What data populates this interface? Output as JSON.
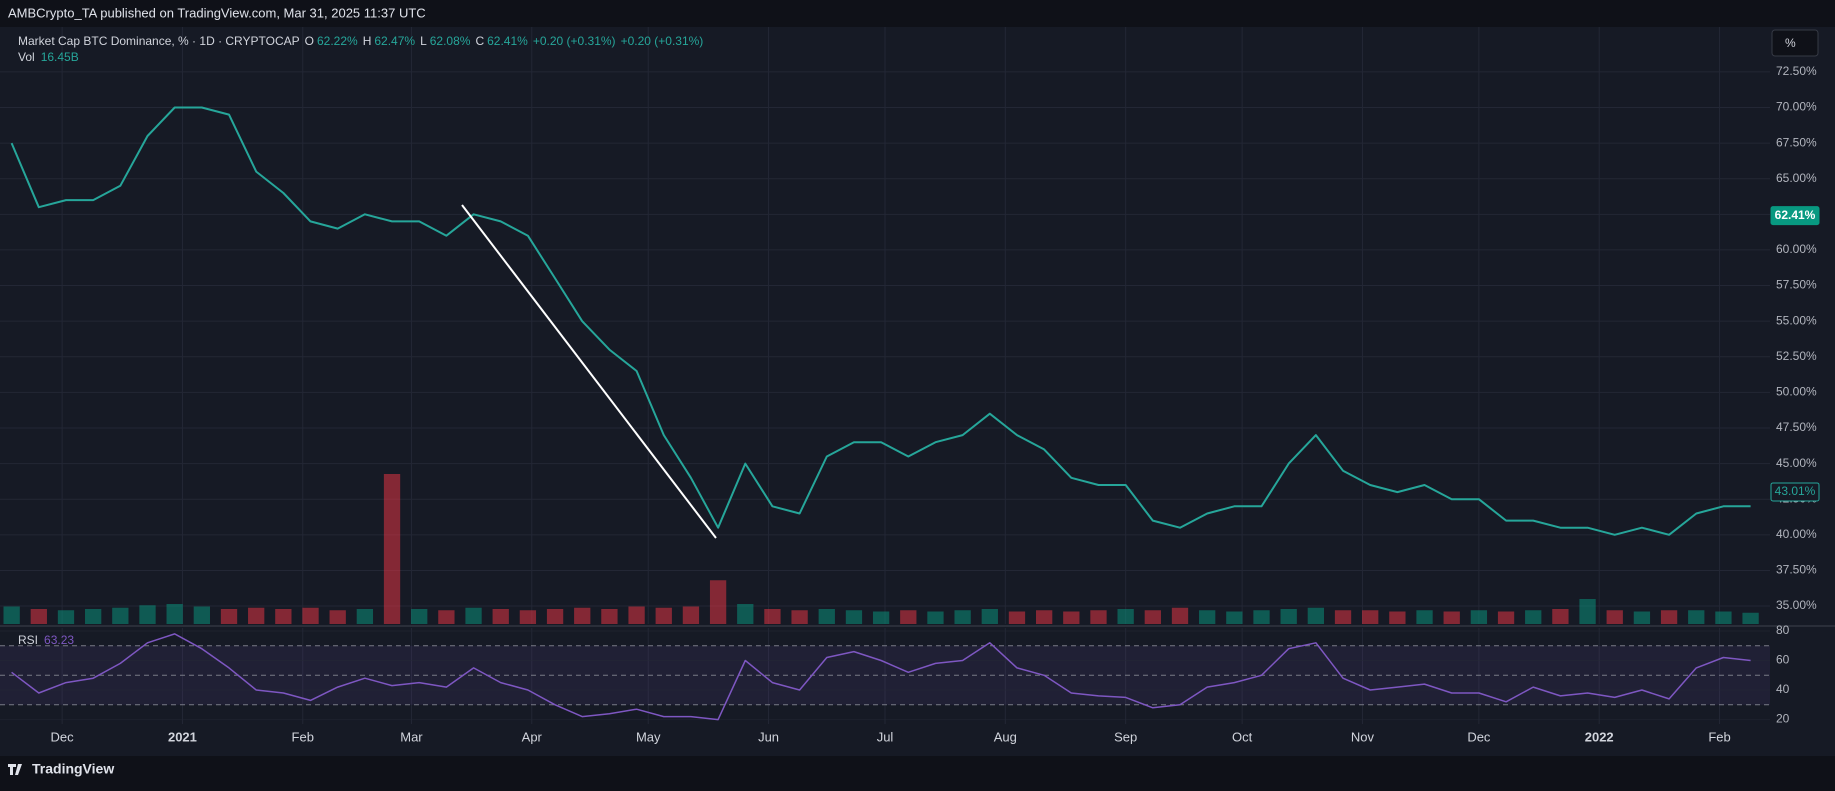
{
  "header": {
    "text": "AMBCrypto_TA published on TradingView.com, Mar 31, 2025 11:37 UTC"
  },
  "footer": {
    "brand": "TradingView"
  },
  "scale_button": "%",
  "chart_data": [
    {
      "type": "line",
      "title": "Market Cap BTC Dominance, % · 1D · CRYPTOCAP",
      "ohlc": [
        {
          "name": "O",
          "value": 62.22,
          "label": "62.22%"
        },
        {
          "name": "H",
          "value": 62.47,
          "label": "62.47%"
        },
        {
          "name": "L",
          "value": 62.08,
          "label": "62.08%"
        },
        {
          "name": "C",
          "value": 62.41,
          "label": "62.41%"
        }
      ],
      "change": "+0.20 (+0.31%)",
      "change_2": "+0.20 (+0.31%)",
      "x": [
        -13,
        -6,
        1,
        8,
        15,
        22,
        29,
        36,
        43,
        50,
        57,
        64,
        71,
        78,
        85,
        92,
        99,
        106,
        113,
        120,
        127,
        134,
        141,
        148,
        155,
        162,
        169,
        176,
        183,
        190,
        197,
        204,
        211,
        218,
        225,
        232,
        239,
        246,
        253,
        260,
        267,
        274,
        281,
        288,
        295,
        302,
        309,
        316,
        323,
        330,
        337,
        344,
        351,
        358,
        365,
        372,
        379,
        386,
        393,
        400,
        407,
        414,
        421,
        428,
        435
      ],
      "series": [
        {
          "name": "BTC Dominance",
          "color": "#26a69a",
          "values": [
            67.5,
            63,
            63.5,
            63.5,
            64.5,
            68,
            70,
            70,
            69.5,
            65.5,
            64,
            62,
            61.5,
            62.5,
            62,
            62,
            61,
            62.5,
            62,
            61,
            58,
            55,
            53,
            51.5,
            47,
            44,
            40.5,
            45,
            42,
            41.5,
            45.5,
            46.5,
            46.5,
            45.5,
            46.5,
            47,
            48.5,
            47,
            46,
            44,
            43.5,
            43.5,
            41,
            40.5,
            41.5,
            42,
            42,
            45,
            47,
            44.5,
            43.5,
            43,
            43.5,
            42.5,
            42.5,
            41,
            41,
            40.5,
            40.5,
            40,
            40.5,
            40,
            41.5,
            42,
            42
          ]
        }
      ],
      "xlim": [
        -16,
        440
      ],
      "xticks": [
        {
          "value": 0,
          "label": "Dec"
        },
        {
          "value": 31,
          "label": "2021"
        },
        {
          "value": 62,
          "label": "Feb"
        },
        {
          "value": 90,
          "label": "Mar"
        },
        {
          "value": 121,
          "label": "Apr"
        },
        {
          "value": 151,
          "label": "May"
        },
        {
          "value": 182,
          "label": "Jun"
        },
        {
          "value": 212,
          "label": "Jul"
        },
        {
          "value": 243,
          "label": "Aug"
        },
        {
          "value": 274,
          "label": "Sep"
        },
        {
          "value": 304,
          "label": "Oct"
        },
        {
          "value": 335,
          "label": "Nov"
        },
        {
          "value": 365,
          "label": "Dec"
        },
        {
          "value": 396,
          "label": "2022"
        },
        {
          "value": 427,
          "label": "Feb"
        }
      ],
      "ylim": [
        33.74,
        75.65
      ],
      "yticks": [
        {
          "value": 35,
          "label": "35.00%"
        },
        {
          "value": 37.5,
          "label": "37.50%"
        },
        {
          "value": 40,
          "label": "40.00%"
        },
        {
          "value": 42.5,
          "label": "42.50%"
        },
        {
          "value": 45,
          "label": "45.00%"
        },
        {
          "value": 47.5,
          "label": "47.50%"
        },
        {
          "value": 50,
          "label": "50.00%"
        },
        {
          "value": 52.5,
          "label": "52.50%"
        },
        {
          "value": 55,
          "label": "55.00%"
        },
        {
          "value": 57.5,
          "label": "57.50%"
        },
        {
          "value": 60,
          "label": "60.00%"
        },
        {
          "value": 62.5,
          "label": "62.50%"
        },
        {
          "value": 65,
          "label": "65.00%"
        },
        {
          "value": 67.5,
          "label": "67.50%"
        },
        {
          "value": 70,
          "label": "70.00%"
        },
        {
          "value": 72.5,
          "label": "72.50%"
        }
      ],
      "badges": [
        {
          "value": 62.41,
          "label": "62.41%",
          "color": "#089981"
        },
        {
          "value": 43.01,
          "label": "43.01%",
          "color": "#26a69a"
        }
      ],
      "grid": true
    },
    {
      "type": "bar",
      "name": "Vol",
      "last": {
        "value": 16.45,
        "label": "16.45B"
      },
      "values": [
        14,
        12,
        11,
        12,
        13,
        15,
        16,
        14,
        12,
        13,
        12,
        13,
        11,
        12,
        120,
        12,
        11,
        13,
        12,
        11,
        12,
        13,
        12,
        14,
        13,
        14,
        35,
        16,
        12,
        11,
        12,
        11,
        10,
        11,
        10,
        11,
        12,
        10,
        11,
        10,
        11,
        12,
        11,
        13,
        11,
        10,
        11,
        12,
        13,
        11,
        11,
        10,
        11,
        10,
        11,
        10,
        11,
        12,
        20,
        11,
        10,
        11,
        11,
        10,
        9
      ],
      "colors": [
        "#089981",
        "#f23645"
      ]
    },
    {
      "type": "line",
      "name": "RSI",
      "last": 63.23,
      "color": "#7e57c2",
      "values": [
        52,
        38,
        45,
        48,
        58,
        72,
        78,
        68,
        55,
        40,
        38,
        33,
        42,
        48,
        43,
        45,
        42,
        55,
        45,
        40,
        30,
        22,
        24,
        27,
        22,
        22,
        20,
        60,
        45,
        40,
        62,
        66,
        60,
        52,
        58,
        60,
        72,
        55,
        50,
        38,
        36,
        35,
        28,
        30,
        42,
        45,
        50,
        68,
        72,
        48,
        40,
        42,
        44,
        38,
        38,
        32,
        42,
        36,
        38,
        35,
        40,
        34,
        55,
        62,
        60
      ],
      "ylim": [
        17,
        82
      ],
      "yticks": [
        20,
        40,
        60,
        80
      ],
      "bands": [
        30,
        50,
        70
      ]
    }
  ]
}
